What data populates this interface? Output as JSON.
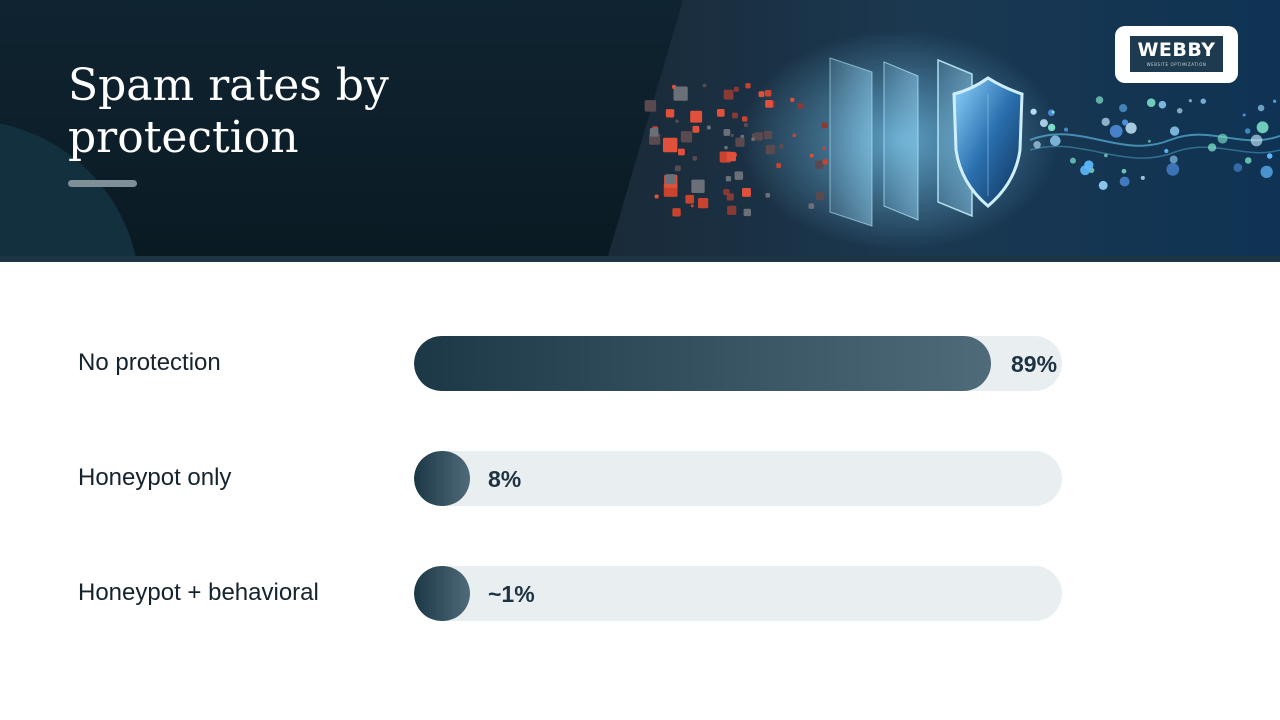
{
  "header": {
    "title": "Spam rates by protection",
    "logo": {
      "word": "WEBBY",
      "tagline": "WEBSITE OPTIMIZATION"
    },
    "hero_icons": [
      "spam-particles",
      "filter-layers",
      "shield-icon",
      "clean-data-particles"
    ]
  },
  "colors": {
    "header_bg": "#0b1d27",
    "bar_fill_start": "#1c3847",
    "bar_fill_end": "#4f6a78",
    "bar_track": "#e9eef1",
    "label_text": "#15232d",
    "spam_red": "#e0503b",
    "shield_blue": "#2f7fd0"
  },
  "chart_data": {
    "type": "bar",
    "orientation": "horizontal",
    "categories": [
      "No protection",
      "Honeypot only",
      "Honeypot + behavioral"
    ],
    "values": [
      89,
      8,
      1
    ],
    "value_labels": [
      "89%",
      "8%",
      "~1%"
    ],
    "xlim": [
      0,
      100
    ],
    "grid": false,
    "legend": "none"
  }
}
